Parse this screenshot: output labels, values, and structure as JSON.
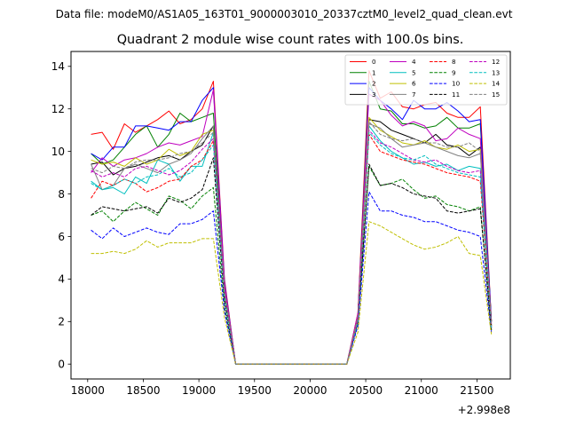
{
  "figure": {
    "suptitle": "Data file: modeM0/AS1A05_163T01_9000003010_20337cztM0_level2_quad_clean.evt"
  },
  "chart_data": {
    "type": "line",
    "title": "Quadrant 2 module wise count rates with 100.0s bins.",
    "xlabel": "",
    "ylabel": "",
    "x_offset_label": "+2.998e8",
    "xlim": [
      17850,
      21800
    ],
    "ylim": [
      -0.7,
      14.7
    ],
    "xticks": [
      18000,
      18500,
      19000,
      19500,
      20000,
      20500,
      21000,
      21500
    ],
    "xtick_labels": [
      "18000",
      "18500",
      "19000",
      "19500",
      "20000",
      "20500",
      "21000",
      "21500"
    ],
    "yticks": [
      0,
      2,
      4,
      6,
      8,
      10,
      12,
      14
    ],
    "ytick_labels": [
      "0",
      "2",
      "4",
      "6",
      "8",
      "10",
      "12",
      "14"
    ],
    "grid": false,
    "legend_placement": "top-right",
    "legend_columns": 4,
    "x": [
      18030,
      18130,
      18230,
      18330,
      18430,
      18530,
      18630,
      18730,
      18830,
      18930,
      19030,
      19130,
      19230,
      19330,
      19430,
      19530,
      19630,
      19730,
      19830,
      19930,
      20030,
      20130,
      20230,
      20330,
      20430,
      20530,
      20630,
      20730,
      20830,
      20930,
      21030,
      21130,
      21230,
      21330,
      21430,
      21530,
      21630
    ],
    "series": [
      {
        "name": "0",
        "color": "#ff0000",
        "dash": "solid",
        "values": [
          10.8,
          10.9,
          10.1,
          11.3,
          10.9,
          11.2,
          11.5,
          11.9,
          11.3,
          11.5,
          12.0,
          13.3,
          4.0,
          0,
          0,
          0,
          0,
          0,
          0,
          0,
          0,
          0,
          0,
          0,
          2.4,
          13.8,
          12.5,
          12.8,
          12.1,
          12.0,
          12.2,
          12.3,
          11.8,
          11.6,
          11.6,
          12.1,
          2.0
        ]
      },
      {
        "name": "1",
        "color": "#008000",
        "dash": "solid",
        "values": [
          9.9,
          9.4,
          9.6,
          10.2,
          10.8,
          11.2,
          10.2,
          10.8,
          11.8,
          11.4,
          11.6,
          11.8,
          3.8,
          0,
          0,
          0,
          0,
          0,
          0,
          0,
          0,
          0,
          0,
          0,
          2.3,
          13.3,
          12.0,
          11.9,
          11.3,
          11.3,
          11.1,
          11.2,
          11.6,
          11.1,
          11.1,
          11.3,
          2.0
        ]
      },
      {
        "name": "2",
        "color": "#0000ff",
        "dash": "solid",
        "values": [
          9.9,
          9.6,
          10.2,
          10.2,
          11.2,
          11.2,
          11.1,
          11.0,
          11.4,
          11.4,
          12.4,
          13.0,
          3.9,
          0,
          0,
          0,
          0,
          0,
          0,
          0,
          0,
          0,
          0,
          0,
          2.3,
          13.0,
          12.4,
          12.0,
          11.5,
          12.4,
          12.0,
          12.0,
          12.3,
          11.9,
          11.4,
          11.5,
          2.0
        ]
      },
      {
        "name": "3",
        "color": "#000000",
        "dash": "solid",
        "values": [
          9.4,
          9.5,
          8.9,
          9.2,
          9.3,
          9.5,
          9.7,
          9.8,
          9.6,
          10.0,
          10.3,
          11.2,
          3.5,
          0,
          0,
          0,
          0,
          0,
          0,
          0,
          0,
          0,
          0,
          0,
          2.2,
          11.5,
          11.4,
          11.0,
          10.8,
          10.6,
          10.4,
          10.8,
          10.3,
          10.2,
          9.8,
          10.2,
          1.8
        ]
      },
      {
        "name": "4",
        "color": "#bf00bf",
        "dash": "solid",
        "values": [
          9.0,
          9.7,
          9.3,
          9.6,
          9.7,
          9.9,
          10.2,
          10.4,
          10.3,
          10.5,
          10.7,
          12.9,
          3.8,
          0,
          0,
          0,
          0,
          0,
          0,
          0,
          0,
          0,
          0,
          0,
          2.4,
          12.7,
          12.4,
          11.7,
          11.2,
          11.4,
          11.2,
          10.5,
          10.6,
          11.1,
          10.8,
          10.6,
          1.9
        ]
      },
      {
        "name": "5",
        "color": "#00bfbf",
        "dash": "solid",
        "values": [
          8.6,
          8.2,
          8.3,
          8.0,
          8.8,
          8.5,
          9.6,
          9.4,
          8.6,
          9.3,
          9.3,
          10.9,
          3.4,
          0,
          0,
          0,
          0,
          0,
          0,
          0,
          0,
          0,
          0,
          0,
          2.1,
          11.2,
          10.5,
          10.0,
          9.7,
          9.4,
          9.5,
          9.3,
          9.4,
          9.1,
          9.3,
          9.2,
          1.7
        ]
      },
      {
        "name": "6",
        "color": "#bfbf00",
        "dash": "solid",
        "values": [
          9.6,
          9.4,
          9.5,
          9.3,
          9.7,
          9.4,
          9.6,
          10.1,
          9.8,
          10.0,
          10.8,
          11.0,
          3.5,
          0,
          0,
          0,
          0,
          0,
          0,
          0,
          0,
          0,
          0,
          0,
          2.2,
          11.6,
          11.0,
          10.7,
          10.4,
          10.3,
          10.5,
          10.2,
          10.1,
          10.3,
          10.0,
          10.1,
          1.8
        ]
      },
      {
        "name": "7",
        "color": "#808080",
        "dash": "solid",
        "values": [
          9.4,
          8.2,
          8.4,
          9.2,
          9.4,
          9.2,
          9.0,
          9.4,
          9.6,
          9.9,
          10.6,
          11.2,
          3.5,
          0,
          0,
          0,
          0,
          0,
          0,
          0,
          0,
          0,
          0,
          0,
          2.2,
          11.3,
          11.1,
          10.6,
          10.2,
          10.3,
          10.4,
          10.2,
          10.0,
          9.8,
          9.7,
          9.9,
          1.8
        ]
      },
      {
        "name": "8",
        "color": "#ff0000",
        "dash": "dashed",
        "values": [
          7.8,
          8.6,
          8.4,
          8.7,
          8.5,
          8.1,
          8.3,
          8.6,
          8.7,
          9.3,
          9.6,
          10.5,
          3.4,
          0,
          0,
          0,
          0,
          0,
          0,
          0,
          0,
          0,
          0,
          0,
          2.1,
          10.8,
          10.0,
          9.8,
          9.6,
          9.5,
          9.4,
          9.2,
          9.0,
          8.9,
          8.8,
          8.6,
          1.7
        ]
      },
      {
        "name": "9",
        "color": "#008000",
        "dash": "dashed",
        "values": [
          7.0,
          7.2,
          6.7,
          7.2,
          7.6,
          7.3,
          7.0,
          7.9,
          7.7,
          7.3,
          7.9,
          8.3,
          2.7,
          0,
          0,
          0,
          0,
          0,
          0,
          0,
          0,
          0,
          0,
          0,
          1.9,
          9.3,
          8.4,
          8.5,
          8.7,
          8.2,
          7.8,
          7.9,
          7.5,
          7.4,
          7.2,
          7.4,
          1.6
        ]
      },
      {
        "name": "10",
        "color": "#0000ff",
        "dash": "dashed",
        "values": [
          6.3,
          5.9,
          6.4,
          6.0,
          6.2,
          6.4,
          6.2,
          6.1,
          6.6,
          6.6,
          6.8,
          7.2,
          2.5,
          0,
          0,
          0,
          0,
          0,
          0,
          0,
          0,
          0,
          0,
          0,
          1.8,
          8.1,
          7.2,
          7.2,
          7.0,
          6.9,
          6.7,
          6.7,
          6.5,
          6.3,
          6.2,
          6.0,
          1.5
        ]
      },
      {
        "name": "11",
        "color": "#000000",
        "dash": "dashed",
        "values": [
          7.0,
          7.4,
          7.3,
          7.2,
          7.3,
          7.4,
          7.1,
          7.8,
          7.6,
          7.8,
          8.2,
          9.7,
          3.0,
          0,
          0,
          0,
          0,
          0,
          0,
          0,
          0,
          0,
          0,
          0,
          2.0,
          9.4,
          8.4,
          8.5,
          8.3,
          8.0,
          7.9,
          7.8,
          7.2,
          7.1,
          7.2,
          7.3,
          1.6
        ]
      },
      {
        "name": "12",
        "color": "#bf00bf",
        "dash": "dashed",
        "values": [
          9.1,
          8.8,
          9.0,
          8.8,
          9.2,
          9.3,
          9.1,
          8.9,
          9.1,
          9.5,
          10.1,
          10.6,
          3.3,
          0,
          0,
          0,
          0,
          0,
          0,
          0,
          0,
          0,
          0,
          0,
          2.1,
          11.0,
          10.4,
          10.2,
          9.9,
          9.6,
          9.5,
          9.6,
          9.3,
          9.1,
          9.0,
          9.1,
          1.7
        ]
      },
      {
        "name": "13",
        "color": "#00bfbf",
        "dash": "dashed",
        "values": [
          8.5,
          8.2,
          8.4,
          8.7,
          8.5,
          8.8,
          8.9,
          9.2,
          8.8,
          9.0,
          9.6,
          10.3,
          3.2,
          0,
          0,
          0,
          0,
          0,
          0,
          0,
          0,
          0,
          0,
          0,
          2.0,
          10.9,
          10.3,
          9.9,
          9.7,
          9.6,
          9.8,
          9.4,
          9.2,
          9.0,
          8.9,
          8.8,
          1.7
        ]
      },
      {
        "name": "14",
        "color": "#bfbf00",
        "dash": "dashed",
        "values": [
          5.2,
          5.2,
          5.3,
          5.2,
          5.4,
          5.8,
          5.5,
          5.7,
          5.7,
          5.7,
          5.9,
          5.9,
          2.2,
          0,
          0,
          0,
          0,
          0,
          0,
          0,
          0,
          0,
          0,
          0,
          1.5,
          6.7,
          6.5,
          6.2,
          5.9,
          5.6,
          5.4,
          5.5,
          5.7,
          6.0,
          5.2,
          5.1,
          1.4
        ]
      },
      {
        "name": "15",
        "color": "#808080",
        "dash": "dashed",
        "values": [
          9.2,
          9.0,
          9.3,
          9.2,
          9.5,
          9.6,
          9.6,
          9.7,
          9.9,
          10.0,
          10.4,
          10.9,
          3.4,
          0,
          0,
          0,
          0,
          0,
          0,
          0,
          0,
          0,
          0,
          0,
          2.1,
          11.4,
          10.8,
          10.6,
          10.5,
          10.6,
          10.4,
          10.4,
          10.2,
          10.2,
          10.4,
          10.0,
          1.8
        ]
      }
    ]
  }
}
